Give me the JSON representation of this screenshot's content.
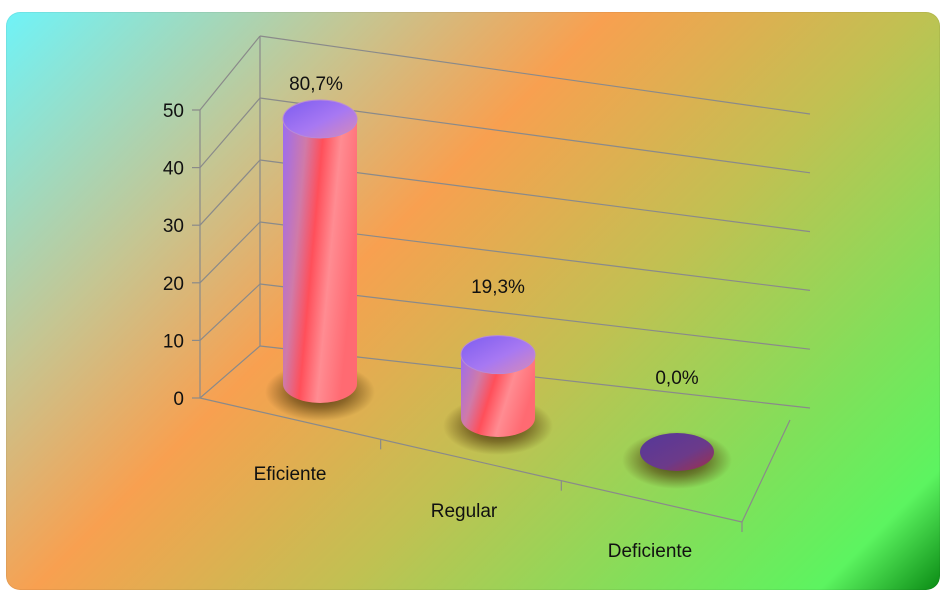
{
  "chart_data": {
    "type": "bar",
    "title": "",
    "xlabel": "",
    "ylabel": "",
    "ylim": [
      0,
      50
    ],
    "y_ticks": [
      "0",
      "10",
      "20",
      "30",
      "40",
      "50"
    ],
    "categories": [
      "Eficiente",
      "Regular",
      "Deficiente"
    ],
    "values": [
      46,
      11,
      0
    ],
    "data_labels": [
      "80,7%",
      "19,3%",
      "0,0%"
    ],
    "grid": true,
    "legend": "none",
    "colors": {
      "bar_top": "#8a5cf0",
      "bar_body": "#ff5a62",
      "bar_highlight": "#ffb0b0",
      "gridline": "#8a8a8a",
      "shadow": "#3a2a10"
    }
  }
}
